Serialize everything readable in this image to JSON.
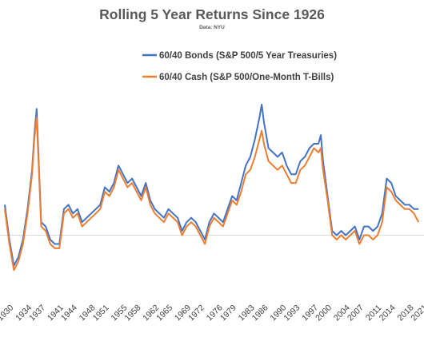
{
  "chart_data": {
    "type": "line",
    "title": "Rolling 5 Year Returns Since 1926",
    "subtitle": "Data: NYU",
    "xlabel": "",
    "ylabel": "",
    "x_tick_labels": [
      "1930",
      "1934",
      "1937",
      "1941",
      "1944",
      "1948",
      "1951",
      "1955",
      "1958",
      "1962",
      "1965",
      "1969",
      "1972",
      "1976",
      "1979",
      "1983",
      "1986",
      "1990",
      "1993",
      "1997",
      "2000",
      "2004",
      "2007",
      "2011",
      "2014",
      "2018",
      "2021"
    ],
    "x_tick_years": [
      1930,
      1934,
      1937,
      1941,
      1944,
      1948,
      1951,
      1955,
      1958,
      1962,
      1965,
      1969,
      1972,
      1976,
      1979,
      1983,
      1986,
      1990,
      1993,
      1997,
      2000,
      2004,
      2007,
      2011,
      2014,
      2018,
      2021
    ],
    "xlim": [
      1930,
      2021.5
    ],
    "ylim": [
      -12,
      32
    ],
    "reference_line_y": 0,
    "grid": false,
    "legend_position": "top-center",
    "series": [
      {
        "name": "60/40 Bonds (S&P 500/5 Year Treasuries)",
        "color": "#4472C4",
        "x": [
          1930,
          1931,
          1932,
          1933,
          1934,
          1935,
          1936,
          1936.5,
          1937,
          1937.5,
          1938,
          1939,
          1940,
          1941,
          1942,
          1943,
          1944,
          1945,
          1946,
          1947,
          1948,
          1949,
          1950,
          1951,
          1952,
          1953,
          1954,
          1955,
          1956,
          1957,
          1958,
          1959,
          1960,
          1961,
          1962,
          1963,
          1964,
          1965,
          1966,
          1967,
          1968,
          1969,
          1970,
          1971,
          1972,
          1973,
          1974,
          1975,
          1976,
          1977,
          1978,
          1979,
          1980,
          1981,
          1982,
          1983,
          1984,
          1985,
          1986,
          1986.5,
          1987,
          1988,
          1989,
          1990,
          1991,
          1992,
          1993,
          1994,
          1995,
          1996,
          1997,
          1998,
          1999,
          1999.5,
          2000,
          2001,
          2002,
          2003,
          2004,
          2005,
          2006,
          2007,
          2008,
          2009,
          2010,
          2011,
          2012,
          2013,
          2014,
          2015,
          2016,
          2017,
          2018,
          2019,
          2020,
          2021
        ],
        "y": [
          7,
          -1,
          -7,
          -5,
          -1,
          6,
          15,
          23,
          29,
          16,
          3,
          2,
          -1,
          -2,
          -2,
          6,
          7,
          5,
          6,
          3,
          4,
          5,
          6,
          7,
          11,
          10,
          12,
          16,
          14,
          12,
          13,
          11,
          9,
          12,
          8,
          6,
          5,
          4,
          6,
          5,
          4,
          1,
          3,
          4,
          3,
          1,
          -1,
          3,
          5,
          4,
          3,
          6,
          9,
          8,
          12,
          16,
          18,
          22,
          27,
          30,
          26,
          20,
          19,
          18,
          19,
          16,
          14,
          14,
          17,
          18,
          20,
          21,
          21,
          23,
          17,
          9,
          1,
          0,
          1,
          0,
          1,
          2,
          -1,
          2,
          2,
          1,
          2,
          5,
          13,
          12,
          9,
          8,
          7,
          7,
          6,
          6
        ]
      },
      {
        "name": "60/40 Cash (S&P 500/One-Month T-Bills)",
        "color": "#ED7D31",
        "x": [
          1930,
          1931,
          1932,
          1933,
          1934,
          1935,
          1936,
          1936.5,
          1937,
          1937.5,
          1938,
          1939,
          1940,
          1941,
          1942,
          1943,
          1944,
          1945,
          1946,
          1947,
          1948,
          1949,
          1950,
          1951,
          1952,
          1953,
          1954,
          1955,
          1956,
          1957,
          1958,
          1959,
          1960,
          1961,
          1962,
          1963,
          1964,
          1965,
          1966,
          1967,
          1968,
          1969,
          1970,
          1971,
          1972,
          1973,
          1974,
          1975,
          1976,
          1977,
          1978,
          1979,
          1980,
          1981,
          1982,
          1983,
          1984,
          1985,
          1986,
          1986.5,
          1987,
          1988,
          1989,
          1990,
          1991,
          1992,
          1993,
          1994,
          1995,
          1996,
          1997,
          1998,
          1999,
          1999.5,
          2000,
          2001,
          2002,
          2003,
          2004,
          2005,
          2006,
          2007,
          2008,
          2009,
          2010,
          2011,
          2012,
          2013,
          2014,
          2015,
          2016,
          2017,
          2018,
          2019,
          2020,
          2021
        ],
        "y": [
          6,
          -2,
          -8,
          -6,
          -2,
          5,
          14,
          22,
          27,
          15,
          2,
          1,
          -2,
          -3,
          -3,
          5,
          6,
          4,
          5,
          2,
          3,
          4,
          5,
          6,
          10,
          9,
          11,
          15,
          13,
          11,
          12,
          10,
          8,
          11,
          7,
          5,
          4,
          3,
          5,
          4,
          3,
          0,
          2,
          3,
          2,
          0,
          -2,
          2,
          4,
          3,
          2,
          5,
          8,
          7,
          10,
          14,
          15,
          18,
          22,
          24,
          21,
          17,
          16,
          15,
          16,
          14,
          12,
          12,
          15,
          16,
          18,
          20,
          19,
          20,
          15,
          8,
          0,
          -1,
          0,
          -1,
          0,
          1,
          -2,
          0,
          0,
          -1,
          0,
          3,
          11,
          10,
          8,
          7,
          6,
          6,
          5,
          3
        ]
      }
    ]
  }
}
